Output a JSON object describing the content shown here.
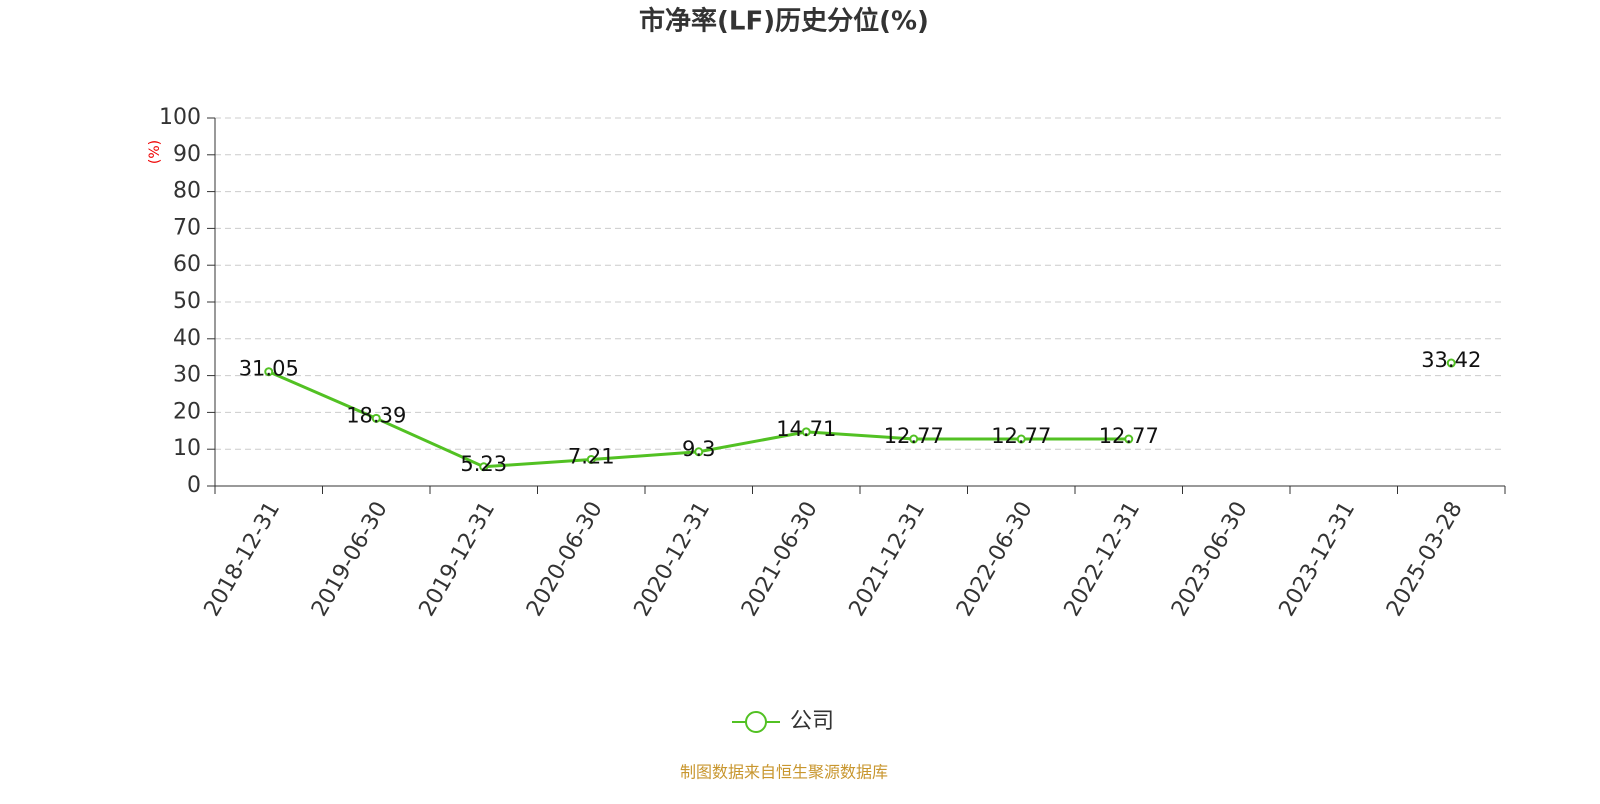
{
  "chart_data": {
    "type": "line",
    "title": "市净率(LF)历史分位(%)",
    "y_label": "(%)",
    "categories": [
      "2018-12-31",
      "2019-06-30",
      "2019-12-31",
      "2020-06-30",
      "2020-12-31",
      "2021-06-30",
      "2021-12-31",
      "2022-06-30",
      "2022-12-31",
      "2023-06-30",
      "2023-12-31",
      "2025-03-28"
    ],
    "series": [
      {
        "name": "公司",
        "color": "#52c123",
        "values": [
          31.05,
          18.39,
          5.23,
          7.21,
          9.3,
          14.71,
          12.77,
          12.77,
          12.77,
          null,
          null,
          33.42
        ]
      }
    ],
    "ylim": [
      0,
      100
    ],
    "yticks": [
      0,
      10,
      20,
      30,
      40,
      50,
      60,
      70,
      80,
      90,
      100
    ],
    "grid": true,
    "legend": "bottom",
    "source": "制图数据来自恒生聚源数据库"
  }
}
